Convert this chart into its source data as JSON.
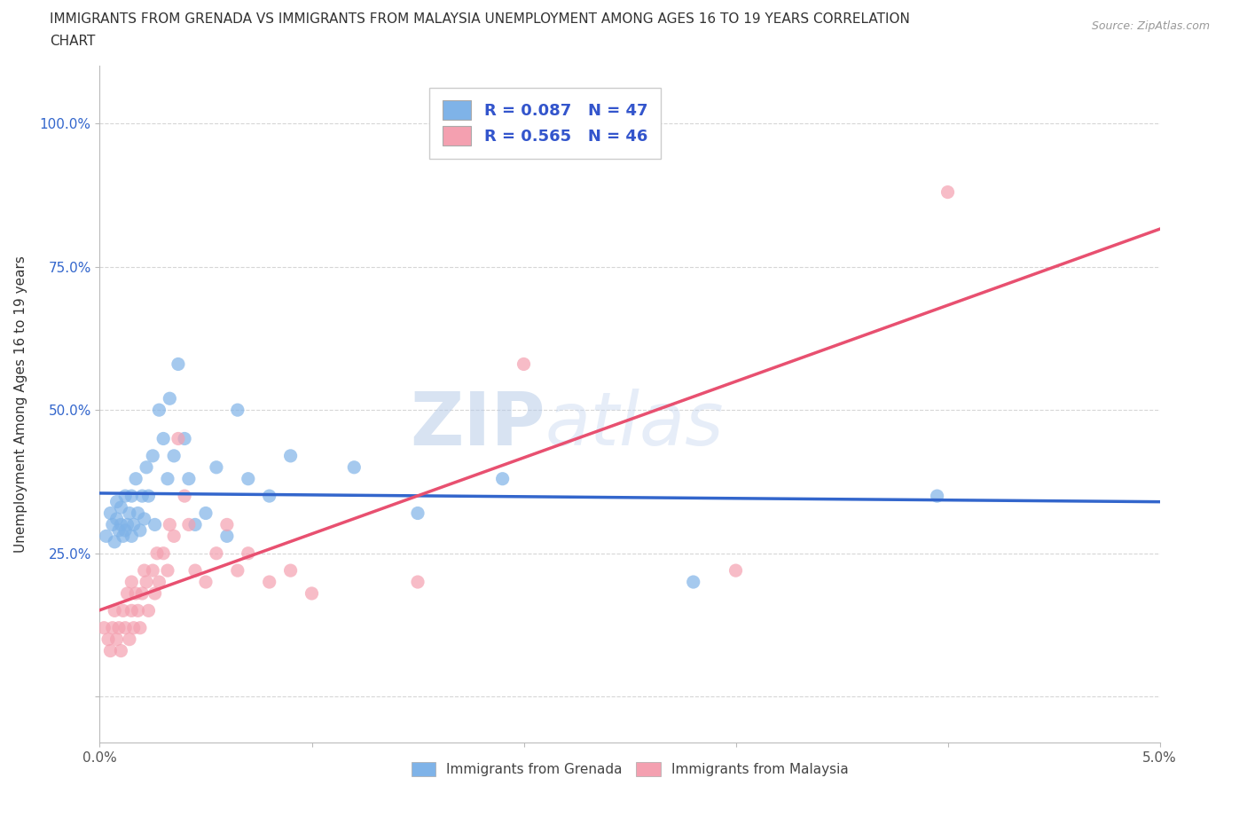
{
  "title_line1": "IMMIGRANTS FROM GRENADA VS IMMIGRANTS FROM MALAYSIA UNEMPLOYMENT AMONG AGES 16 TO 19 YEARS CORRELATION",
  "title_line2": "CHART",
  "source": "Source: ZipAtlas.com",
  "ylabel": "Unemployment Among Ages 16 to 19 years",
  "xlim": [
    0.0,
    0.05
  ],
  "ylim": [
    -0.08,
    1.1
  ],
  "xticks": [
    0.0,
    0.01,
    0.02,
    0.03,
    0.04,
    0.05
  ],
  "xticklabels": [
    "0.0%",
    "",
    "",
    "",
    "",
    "5.0%"
  ],
  "yticks": [
    0.0,
    0.25,
    0.5,
    0.75,
    1.0
  ],
  "yticklabels": [
    "",
    "25.0%",
    "50.0%",
    "75.0%",
    "100.0%"
  ],
  "grenada_color": "#7fb3e8",
  "malaysia_color": "#f4a0b0",
  "grenada_line_color": "#3366cc",
  "malaysia_line_color": "#e85070",
  "grenada_R": 0.087,
  "grenada_N": 47,
  "malaysia_R": 0.565,
  "malaysia_N": 46,
  "legend_text_color": "#3355cc",
  "watermark_zip": "ZIP",
  "watermark_atlas": "atlas",
  "background_color": "#ffffff",
  "grid_color": "#cccccc",
  "grenada_x": [
    0.0003,
    0.0005,
    0.0006,
    0.0007,
    0.0008,
    0.0008,
    0.0009,
    0.001,
    0.001,
    0.0011,
    0.0012,
    0.0012,
    0.0013,
    0.0014,
    0.0015,
    0.0015,
    0.0016,
    0.0017,
    0.0018,
    0.0019,
    0.002,
    0.0021,
    0.0022,
    0.0023,
    0.0025,
    0.0026,
    0.0028,
    0.003,
    0.0032,
    0.0033,
    0.0035,
    0.0037,
    0.004,
    0.0042,
    0.0045,
    0.005,
    0.0055,
    0.006,
    0.0065,
    0.007,
    0.008,
    0.009,
    0.012,
    0.015,
    0.019,
    0.028,
    0.0395
  ],
  "grenada_y": [
    0.28,
    0.32,
    0.3,
    0.27,
    0.31,
    0.34,
    0.29,
    0.3,
    0.33,
    0.28,
    0.35,
    0.29,
    0.3,
    0.32,
    0.28,
    0.35,
    0.3,
    0.38,
    0.32,
    0.29,
    0.35,
    0.31,
    0.4,
    0.35,
    0.42,
    0.3,
    0.5,
    0.45,
    0.38,
    0.52,
    0.42,
    0.58,
    0.45,
    0.38,
    0.3,
    0.32,
    0.4,
    0.28,
    0.5,
    0.38,
    0.35,
    0.42,
    0.4,
    0.32,
    0.38,
    0.2,
    0.35
  ],
  "malaysia_x": [
    0.0002,
    0.0004,
    0.0005,
    0.0006,
    0.0007,
    0.0008,
    0.0009,
    0.001,
    0.0011,
    0.0012,
    0.0013,
    0.0014,
    0.0015,
    0.0015,
    0.0016,
    0.0017,
    0.0018,
    0.0019,
    0.002,
    0.0021,
    0.0022,
    0.0023,
    0.0025,
    0.0026,
    0.0027,
    0.0028,
    0.003,
    0.0032,
    0.0033,
    0.0035,
    0.0037,
    0.004,
    0.0042,
    0.0045,
    0.005,
    0.0055,
    0.006,
    0.0065,
    0.007,
    0.008,
    0.009,
    0.01,
    0.015,
    0.02,
    0.03,
    0.04
  ],
  "malaysia_y": [
    0.12,
    0.1,
    0.08,
    0.12,
    0.15,
    0.1,
    0.12,
    0.08,
    0.15,
    0.12,
    0.18,
    0.1,
    0.15,
    0.2,
    0.12,
    0.18,
    0.15,
    0.12,
    0.18,
    0.22,
    0.2,
    0.15,
    0.22,
    0.18,
    0.25,
    0.2,
    0.25,
    0.22,
    0.3,
    0.28,
    0.45,
    0.35,
    0.3,
    0.22,
    0.2,
    0.25,
    0.3,
    0.22,
    0.25,
    0.2,
    0.22,
    0.18,
    0.2,
    0.58,
    0.22,
    0.88
  ]
}
